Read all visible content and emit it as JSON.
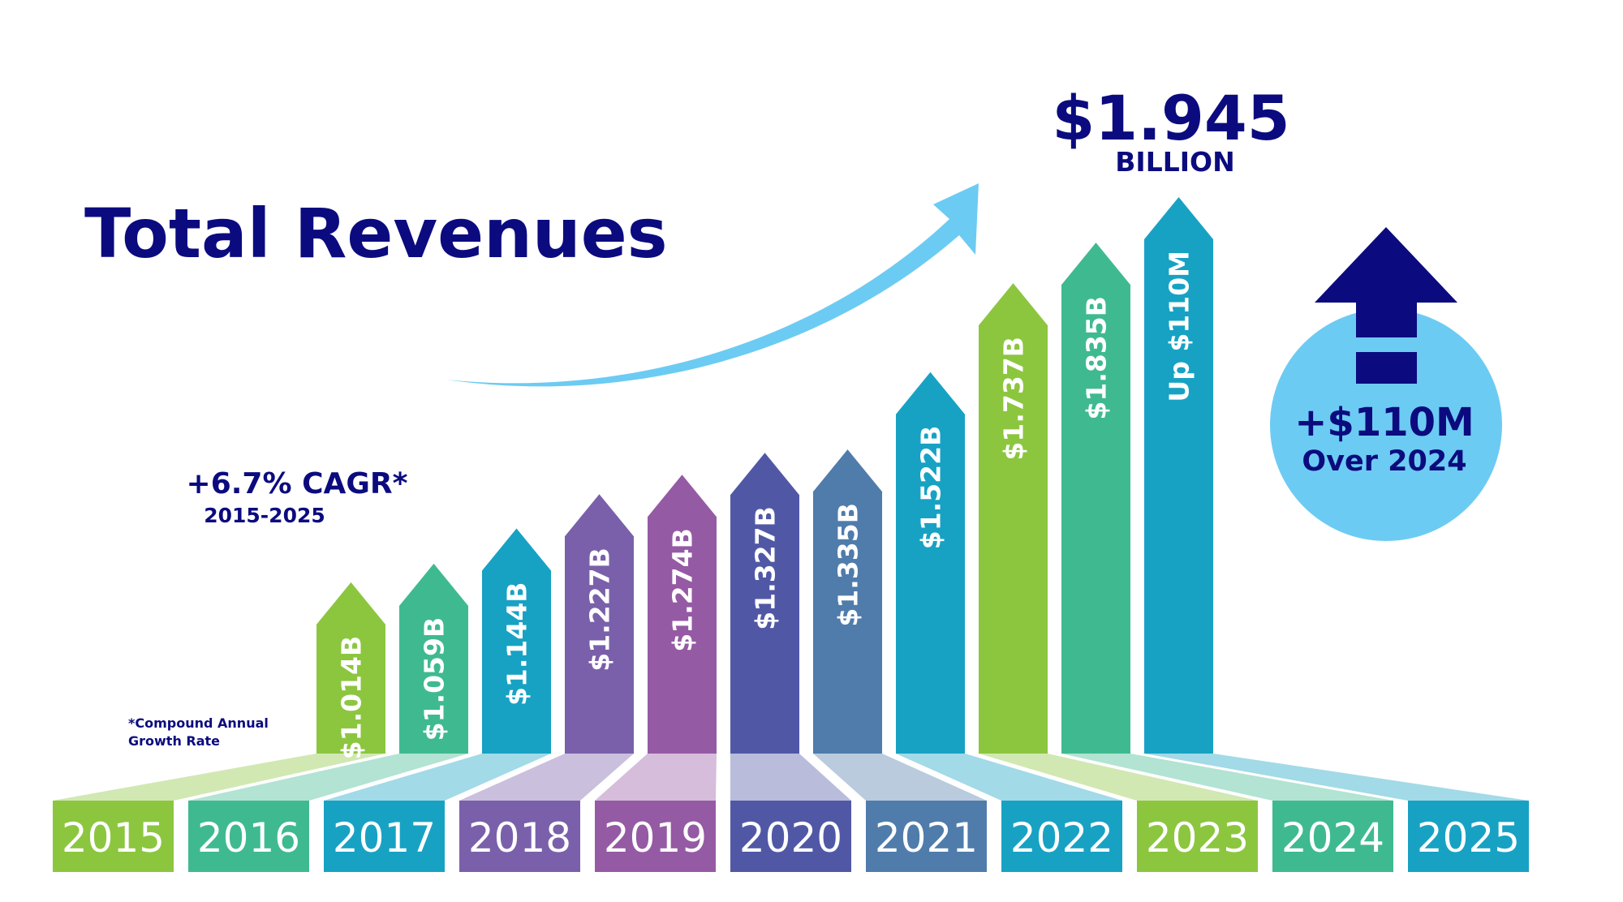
{
  "chart_data": {
    "type": "arrow-bar",
    "title": "Total Revenues",
    "categories": [
      "2015",
      "2016",
      "2017",
      "2018",
      "2019",
      "2020",
      "2021",
      "2022",
      "2023",
      "2024",
      "2025"
    ],
    "series": [
      {
        "values": [
          1.014,
          1.059,
          1.144,
          1.227,
          1.274,
          1.327,
          1.335,
          1.522,
          1.737,
          1.835,
          1.945
        ],
        "value_labels": [
          "$1.014B",
          "$1.059B",
          "$1.144B",
          "$1.227B",
          "$1.274B",
          "$1.327B",
          "$1.335B",
          "$1.522B",
          "$1.737B",
          "$1.835B",
          null
        ],
        "colors": [
          "#8cc63f",
          "#3fba90",
          "#17a2c4",
          "#7a60aa",
          "#955aa4",
          "#5058a6",
          "#4f7cab",
          "#17a2c4",
          "#8cc63f",
          "#3fba90",
          "#17a2c4"
        ]
      }
    ],
    "ylim": [
      0.6,
      1.945
    ],
    "annotations": {
      "total": "$1.945",
      "total_unit": "BILLION",
      "last_bar": "Up $110M",
      "change": "+$110M",
      "change_ref": "Over 2024",
      "cagr": "+6.7% CAGR*",
      "cagr_period": "2015-2025",
      "footnote": [
        "*Compound Annual",
        "Growth Rate"
      ]
    }
  }
}
